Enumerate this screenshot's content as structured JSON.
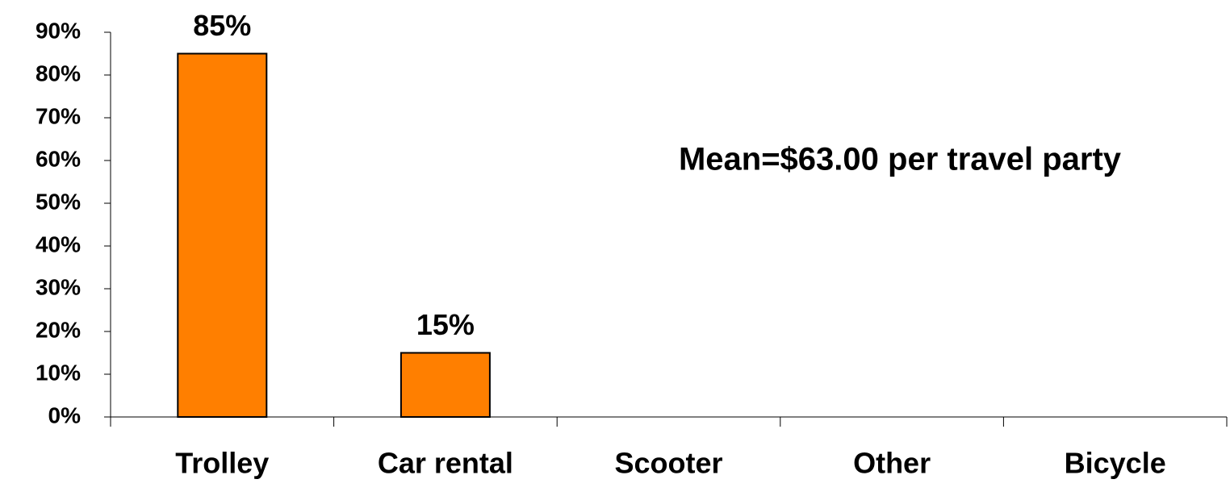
{
  "chart_data": {
    "type": "bar",
    "categories": [
      "Trolley",
      "Car rental",
      "Scooter",
      "Other",
      "Bicycle"
    ],
    "values": [
      85,
      15,
      0,
      0,
      0
    ],
    "value_labels": [
      "85%",
      "15%",
      null,
      null,
      null
    ],
    "color": "#ff7f00",
    "ylim": [
      0,
      90
    ],
    "yticks": [
      {
        "value": 0,
        "label": "0%"
      },
      {
        "value": 10,
        "label": "10%"
      },
      {
        "value": 20,
        "label": "20%"
      },
      {
        "value": 30,
        "label": "30%"
      },
      {
        "value": 40,
        "label": "40%"
      },
      {
        "value": 50,
        "label": "50%"
      },
      {
        "value": 60,
        "label": "60%"
      },
      {
        "value": 70,
        "label": "70%"
      },
      {
        "value": 80,
        "label": "80%"
      },
      {
        "value": 90,
        "label": "90%"
      }
    ],
    "annotation": "Mean=$63.00 per travel party"
  }
}
